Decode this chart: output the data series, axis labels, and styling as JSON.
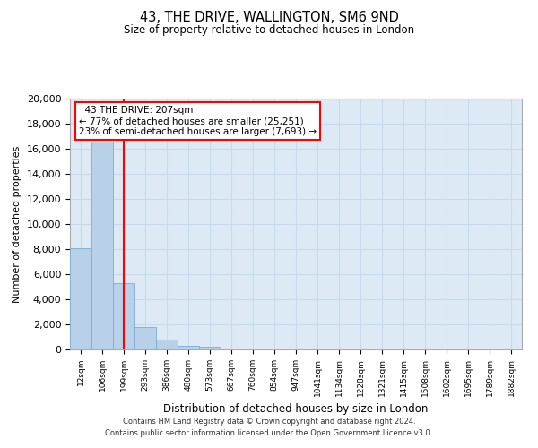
{
  "title": "43, THE DRIVE, WALLINGTON, SM6 9ND",
  "subtitle": "Size of property relative to detached houses in London",
  "xlabel": "Distribution of detached houses by size in London",
  "ylabel": "Number of detached properties",
  "categories": [
    "12sqm",
    "106sqm",
    "199sqm",
    "293sqm",
    "386sqm",
    "480sqm",
    "573sqm",
    "667sqm",
    "760sqm",
    "854sqm",
    "947sqm",
    "1041sqm",
    "1134sqm",
    "1228sqm",
    "1321sqm",
    "1415sqm",
    "1508sqm",
    "1602sqm",
    "1695sqm",
    "1789sqm",
    "1882sqm"
  ],
  "values": [
    8100,
    16600,
    5300,
    1800,
    800,
    300,
    200,
    0,
    0,
    0,
    0,
    0,
    0,
    0,
    0,
    0,
    0,
    0,
    0,
    0,
    0
  ],
  "bar_color": "#b8d0e8",
  "bar_edge_color": "#7aadd4",
  "vline_x_idx": 2,
  "vline_color": "red",
  "ylim": [
    0,
    20000
  ],
  "yticks": [
    0,
    2000,
    4000,
    6000,
    8000,
    10000,
    12000,
    14000,
    16000,
    18000,
    20000
  ],
  "annotation_title": "43 THE DRIVE: 207sqm",
  "annotation_line1": "← 77% of detached houses are smaller (25,251)",
  "annotation_line2": "23% of semi-detached houses are larger (7,693) →",
  "annotation_box_color": "white",
  "annotation_box_edge": "red",
  "footnote1": "Contains HM Land Registry data © Crown copyright and database right 2024.",
  "footnote2": "Contains public sector information licensed under the Open Government Licence v3.0.",
  "grid_color": "#c8daea",
  "bg_color": "#ddeaf5"
}
